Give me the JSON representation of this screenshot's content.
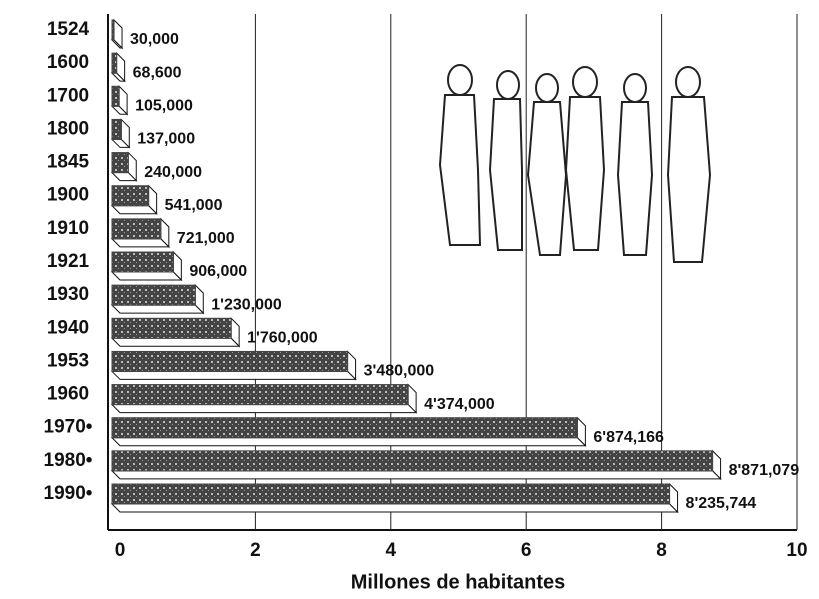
{
  "chart_data": {
    "type": "barh",
    "x_label": "Millones de habitantes",
    "categories": [
      "1524",
      "1600",
      "1700",
      "1800",
      "1845",
      "1900",
      "1910",
      "1921",
      "1930",
      "1940",
      "1953",
      "1960",
      "1970•",
      "1980•",
      "1990•"
    ],
    "values": [
      0.03,
      0.0686,
      0.105,
      0.137,
      0.24,
      0.541,
      0.721,
      0.906,
      1.23,
      1.76,
      3.48,
      4.374,
      6.874166,
      8.871079,
      8.235744
    ],
    "value_labels": [
      "30,000",
      "68,600",
      "105,000",
      "137,000",
      "240,000",
      "541,000",
      "721,000",
      "906,000",
      "1'230,000",
      "1'760,000",
      "3'480,000",
      "4'374,000",
      "6'874,166",
      "8'871,079",
      "8'235,744"
    ],
    "color": "#444444",
    "xlim": [
      0,
      10
    ],
    "xticks": [
      0,
      2,
      4,
      6,
      8,
      10
    ],
    "grid": true
  }
}
